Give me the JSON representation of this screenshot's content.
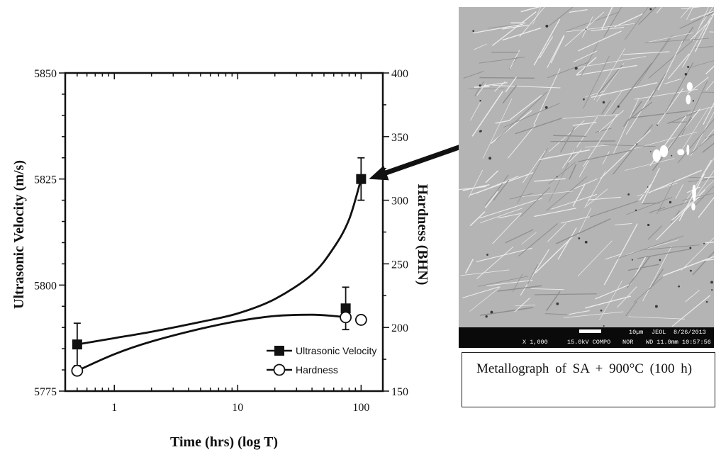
{
  "chart_data": {
    "type": "scatter",
    "xlabel": "Time (hrs) (log T)",
    "ylabel": "Ultrasonic Velocity (m/s)",
    "y2label": "Hardness (BHN)",
    "xscale": "log",
    "xlim": [
      0.4,
      150
    ],
    "ylim": [
      5775,
      5850
    ],
    "y2lim": [
      150,
      400
    ],
    "xticks": [
      1,
      10,
      100
    ],
    "xtick_labels": [
      "1",
      "10",
      "100"
    ],
    "yticks": [
      5775,
      5800,
      5825,
      5850
    ],
    "ytick_labels": [
      "5775",
      "5800",
      "5825",
      "5850"
    ],
    "y2ticks": [
      150,
      200,
      250,
      300,
      350,
      400
    ],
    "y2tick_labels": [
      "150",
      "200",
      "250",
      "300",
      "350",
      "400"
    ],
    "grid": false,
    "legend_position": "bottom-right",
    "series": [
      {
        "name": "Ultrasonic Velocity",
        "axis": "left",
        "marker": "filled-square",
        "x": [
          0.5,
          75,
          100
        ],
        "y": [
          5786,
          5794.5,
          5825
        ],
        "err": [
          5,
          5,
          5
        ],
        "fit": [
          [
            0.5,
            5786
          ],
          [
            1,
            5787.5
          ],
          [
            2,
            5789
          ],
          [
            5,
            5791.3
          ],
          [
            10,
            5793.3
          ],
          [
            20,
            5796.7
          ],
          [
            40,
            5802.5
          ],
          [
            60,
            5808.8
          ],
          [
            80,
            5815.5
          ],
          [
            100,
            5825
          ]
        ]
      },
      {
        "name": "Hardness",
        "axis": "right",
        "marker": "open-circle",
        "x": [
          0.5,
          75,
          100
        ],
        "y": [
          166,
          208,
          206
        ],
        "fit": [
          [
            0.5,
            166
          ],
          [
            1,
            179
          ],
          [
            2,
            189
          ],
          [
            5,
            199
          ],
          [
            10,
            205
          ],
          [
            20,
            209
          ],
          [
            40,
            210
          ],
          [
            60,
            209
          ],
          [
            75,
            208
          ]
        ]
      }
    ]
  },
  "figure": {
    "micrograph": {
      "scale_label": "10µm",
      "maker": "JEOL",
      "date": "8/26/2013",
      "magnification": "X 1,000",
      "voltage": "15.0kV COMPO",
      "mode": "NOR",
      "working_distance": "WD 11.0mm 10:57:56"
    },
    "caption": "Metallograph of SA + 900°C (100 h)"
  },
  "colors": {
    "ink": "#111111",
    "micrograph_base": "#b4b4b4",
    "micrograph_bar": "#0a0a0a"
  }
}
